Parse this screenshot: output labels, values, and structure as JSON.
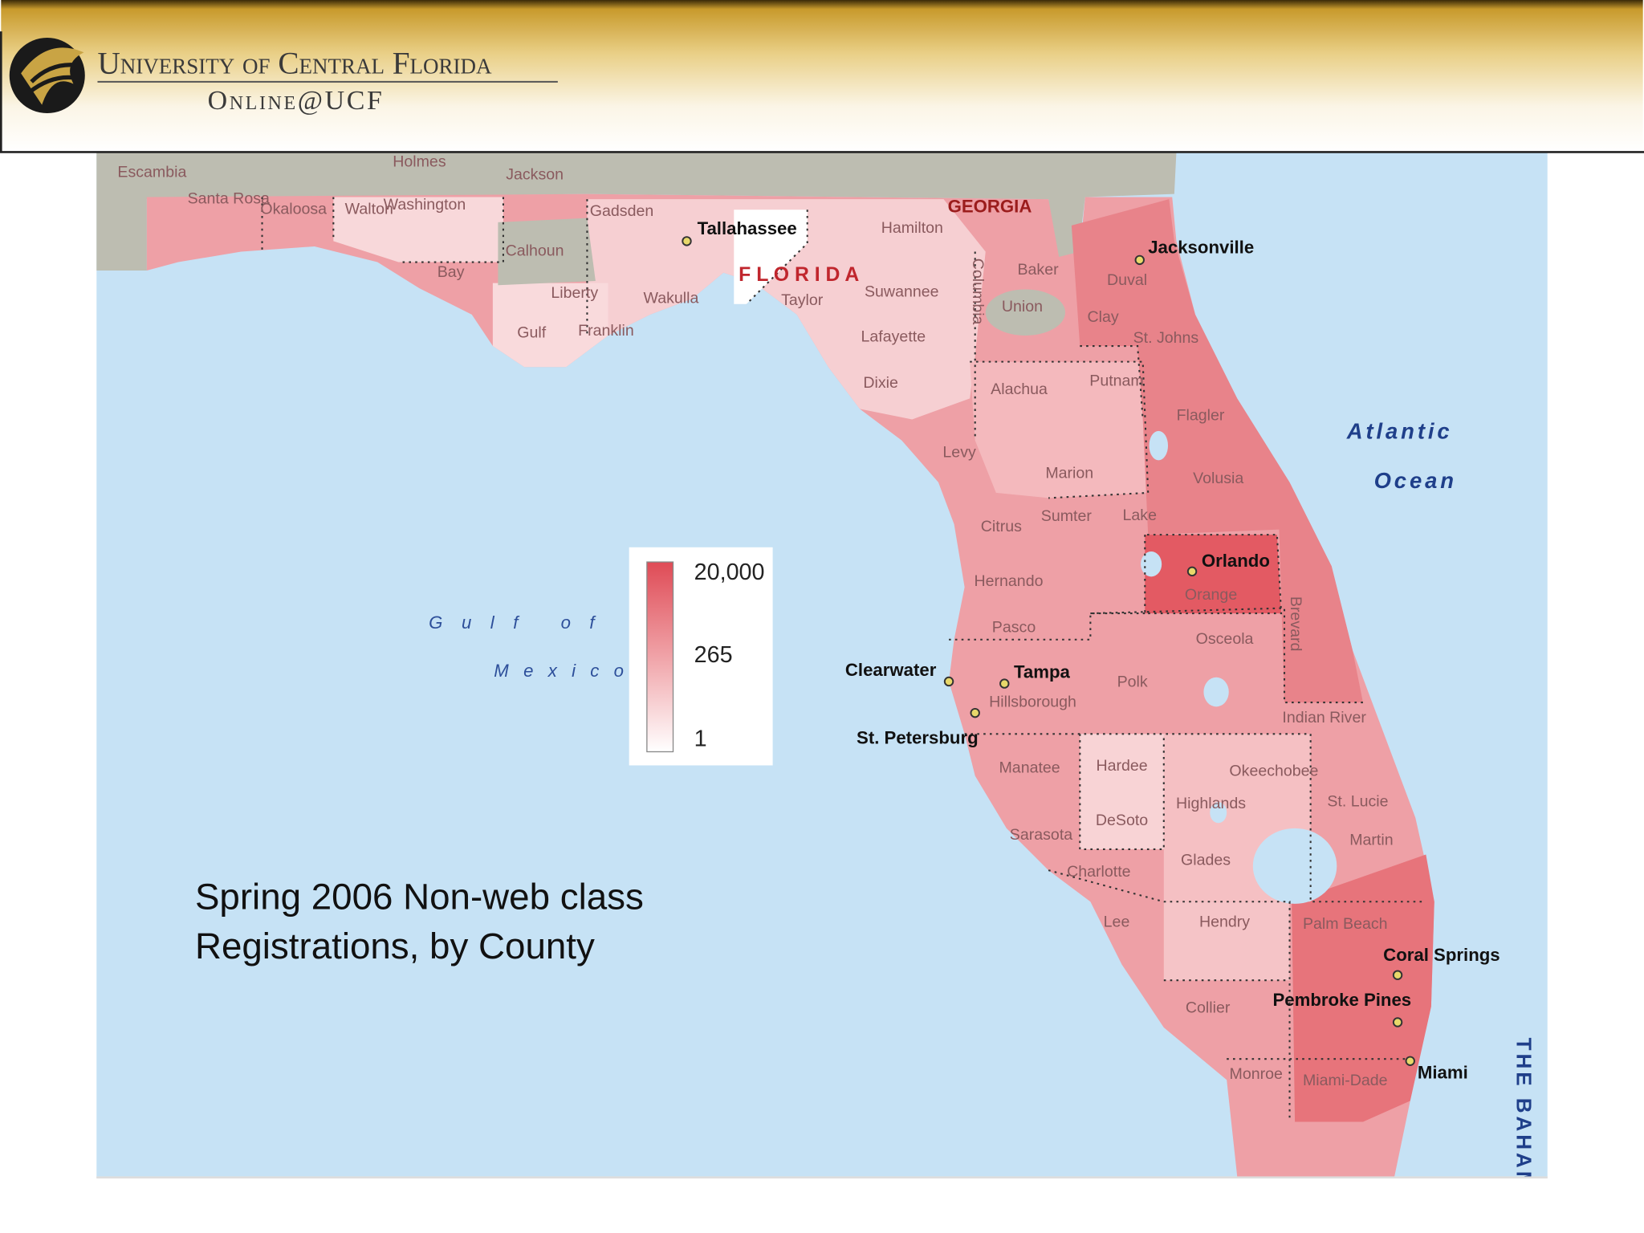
{
  "header": {
    "title": "University of Central Florida",
    "subtitle": "Online@UCF"
  },
  "caption": [
    "Spring 2006 Non-web class",
    "Registrations, by County"
  ],
  "legend": {
    "labels": [
      "20,000",
      "265",
      "1"
    ]
  },
  "regions": [
    "GEORGIA",
    "F L O R I D A",
    "Atlantic",
    "Ocean",
    "Gulf of",
    "Mexico",
    "THE BAHAMAS"
  ],
  "cities": [
    "Tallahassee",
    "Jacksonville",
    "Orlando",
    "Tampa",
    "Clearwater",
    "St. Petersburg",
    "Pembroke Pines",
    "Coral Springs",
    "Miami"
  ],
  "counties": [
    "Escambia",
    "Santa Rosa",
    "Okaloosa",
    "Walton",
    "Holmes",
    "Washington",
    "Jackson",
    "Bay",
    "Calhoun",
    "Gulf",
    "Franklin",
    "Gadsden",
    "Liberty",
    "Wakulla",
    "Taylor",
    "Hamilton",
    "Suwannee",
    "Lafayette",
    "Dixie",
    "Columbia",
    "Baker",
    "Union",
    "Duval",
    "Clay",
    "St. Johns",
    "Putnam",
    "Alachua",
    "Levy",
    "Marion",
    "Flagler",
    "Volusia",
    "Citrus",
    "Sumter",
    "Lake",
    "Hernando",
    "Orange",
    "Pasco",
    "Osceola",
    "Brevard",
    "Polk",
    "Hillsborough",
    "Indian River",
    "Manatee",
    "Hardee",
    "Highlands",
    "Okeechobee",
    "St. Lucie",
    "DeSoto",
    "Sarasota",
    "Martin",
    "Glades",
    "Charlotte",
    "Hendry",
    "Lee",
    "Palm Beach",
    "Collier",
    "Monroe",
    "Miami-Dade"
  ]
}
